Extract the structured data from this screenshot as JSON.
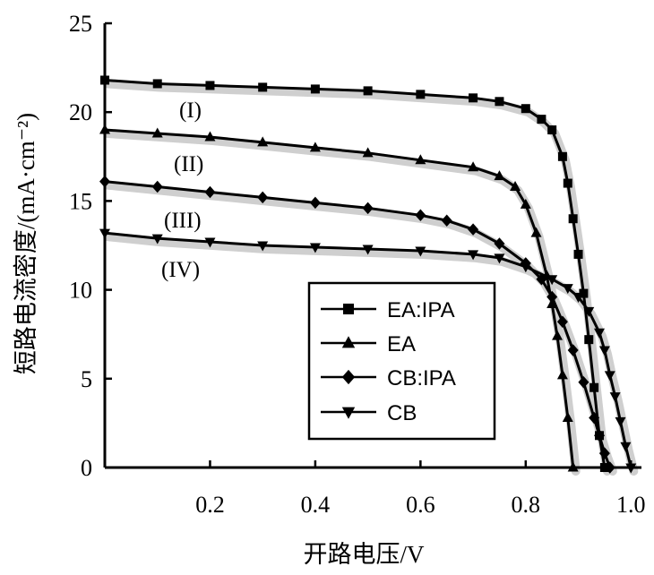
{
  "chart_data": {
    "type": "line",
    "xlabel": "开路电压/V",
    "ylabel": "短路电流密度/(mA·cm⁻²)",
    "xlim": [
      0,
      1.02
    ],
    "ylim": [
      0,
      25
    ],
    "xticks": [
      0.2,
      0.4,
      0.6,
      0.8,
      1.0
    ],
    "xtick_labels": [
      "0.2",
      "0.4",
      "0.6",
      "0.8",
      "1.0"
    ],
    "yticks": [
      0,
      5,
      10,
      15,
      20,
      25
    ],
    "ytick_labels": [
      "0",
      "5",
      "10",
      "15",
      "20",
      "25"
    ],
    "legend_position": "bottom-right",
    "series": [
      {
        "name": "EA:IPA",
        "marker": "square",
        "annotation": "(I)",
        "x": [
          0.0,
          0.1,
          0.2,
          0.3,
          0.4,
          0.5,
          0.6,
          0.7,
          0.75,
          0.8,
          0.83,
          0.85,
          0.87,
          0.88,
          0.89,
          0.9,
          0.91,
          0.92,
          0.93,
          0.94,
          0.95
        ],
        "y": [
          21.8,
          21.6,
          21.5,
          21.4,
          21.3,
          21.2,
          21.0,
          20.8,
          20.6,
          20.2,
          19.6,
          19.0,
          17.5,
          16.0,
          14.0,
          12.0,
          9.8,
          7.2,
          4.5,
          1.8,
          0.0
        ]
      },
      {
        "name": "EA",
        "marker": "triangle-up",
        "annotation": "(II)",
        "x": [
          0.0,
          0.1,
          0.2,
          0.3,
          0.4,
          0.5,
          0.6,
          0.7,
          0.75,
          0.78,
          0.8,
          0.82,
          0.84,
          0.85,
          0.86,
          0.87,
          0.88,
          0.89
        ],
        "y": [
          19.0,
          18.8,
          18.6,
          18.3,
          18.0,
          17.7,
          17.3,
          16.9,
          16.4,
          15.8,
          14.8,
          13.2,
          10.8,
          9.2,
          7.4,
          5.2,
          2.8,
          0.0
        ]
      },
      {
        "name": "CB:IPA",
        "marker": "diamond",
        "annotation": "(III)",
        "x": [
          0.0,
          0.1,
          0.2,
          0.3,
          0.4,
          0.5,
          0.6,
          0.65,
          0.7,
          0.75,
          0.8,
          0.83,
          0.85,
          0.87,
          0.89,
          0.91,
          0.93,
          0.94,
          0.95,
          0.96
        ],
        "y": [
          16.1,
          15.8,
          15.5,
          15.2,
          14.9,
          14.6,
          14.2,
          13.9,
          13.4,
          12.6,
          11.5,
          10.6,
          9.6,
          8.2,
          6.6,
          4.8,
          2.8,
          1.8,
          0.8,
          0.0
        ]
      },
      {
        "name": "CB",
        "marker": "triangle-down",
        "annotation": "(IV)",
        "x": [
          0.0,
          0.1,
          0.2,
          0.3,
          0.4,
          0.5,
          0.6,
          0.7,
          0.75,
          0.8,
          0.85,
          0.88,
          0.9,
          0.92,
          0.94,
          0.95,
          0.96,
          0.97,
          0.98,
          0.99,
          1.0
        ],
        "y": [
          13.2,
          12.9,
          12.7,
          12.5,
          12.4,
          12.3,
          12.2,
          12.0,
          11.8,
          11.3,
          10.6,
          10.1,
          9.6,
          8.8,
          7.6,
          6.6,
          5.2,
          4.0,
          2.6,
          1.2,
          0.0
        ]
      }
    ]
  }
}
